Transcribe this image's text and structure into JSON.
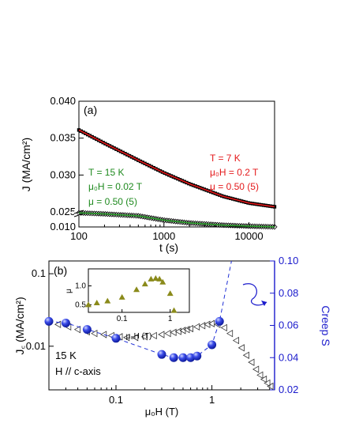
{
  "chart_data": [
    {
      "panel": "a",
      "type": "scatter",
      "panel_label": "(a)",
      "xlabel": "t (s)",
      "ylabel": "J (MA/cm²)",
      "xscale": "log",
      "xlim": [
        100,
        20000
      ],
      "ylim": [
        0.01,
        0.04
      ],
      "y_axis_break": true,
      "x_ticks": [
        {
          "value": 100,
          "label": "100"
        },
        {
          "value": 1000,
          "label": "1000"
        },
        {
          "value": 10000,
          "label": "10000"
        }
      ],
      "y_ticks": [
        {
          "value": 0.01,
          "label": "0.010"
        },
        {
          "value": 0.025,
          "label": "0.025"
        },
        {
          "value": 0.03,
          "label": "0.030"
        },
        {
          "value": 0.035,
          "label": "0.035"
        },
        {
          "value": 0.04,
          "label": "0.040"
        }
      ],
      "series": [
        {
          "marker": "square",
          "color": "#000000",
          "fit_color": "#e41a1c",
          "annotation": {
            "T": "T = 7 K",
            "H": "μ₀H = 0.2 T",
            "mu": "μ = 0.50 (5)"
          },
          "annotation_color": "#e41a1c",
          "x": [
            100,
            200,
            500,
            1000,
            2000,
            5000,
            10000,
            20000
          ],
          "y": [
            0.0361,
            0.0343,
            0.032,
            0.0303,
            0.0288,
            0.0271,
            0.0262,
            0.0257
          ]
        },
        {
          "marker": "diamond-open",
          "color": "#000000",
          "fit_color": "#2ca02c",
          "annotation": {
            "T": "T = 15 K",
            "H": "μ₀H = 0.02 T",
            "mu": "μ = 0.50 (5)"
          },
          "annotation_color": "#1f8a1f",
          "x": [
            100,
            200,
            500,
            1000,
            2000,
            5000,
            10000,
            20000
          ],
          "y": [
            0.0241,
            0.023,
            0.0211,
            0.0168,
            0.014,
            0.0118,
            0.0108,
            0.0101
          ]
        }
      ]
    },
    {
      "panel": "b",
      "type": "scatter",
      "panel_label": "(b)",
      "xlabel": "μ₀H (T)",
      "ylabel_left": "J꜀ (MA/cm²)",
      "ylabel_right": "Creep S",
      "right_axis_color": "#1a1acc",
      "xscale": "log",
      "xlim": [
        0.02,
        4.5
      ],
      "y_left_scale": "log",
      "y_left_lim": [
        0.0025,
        0.15
      ],
      "y_right_lim": [
        0.02,
        0.1
      ],
      "x_ticks": [
        {
          "value": 0.1,
          "label": "0.1"
        },
        {
          "value": 1,
          "label": "1"
        }
      ],
      "y_left_ticks": [
        {
          "value": 0.01,
          "label": "0.01"
        },
        {
          "value": 0.1,
          "label": "0.1"
        }
      ],
      "y_right_ticks": [
        {
          "value": 0.02,
          "label": "0.02"
        },
        {
          "value": 0.04,
          "label": "0.04"
        },
        {
          "value": 0.06,
          "label": "0.06"
        },
        {
          "value": 0.08,
          "label": "0.08"
        },
        {
          "value": 0.1,
          "label": "0.10"
        }
      ],
      "annotations": [
        "15 K",
        "H // c-axis"
      ],
      "jc_series": {
        "marker": "triangle-left-open",
        "color": "#333333",
        "x": [
          0.025,
          0.032,
          0.04,
          0.05,
          0.06,
          0.075,
          0.09,
          0.11,
          0.13,
          0.16,
          0.2,
          0.25,
          0.3,
          0.35,
          0.4,
          0.45,
          0.5,
          0.55,
          0.6,
          0.7,
          0.8,
          0.9,
          1.0,
          1.15,
          1.35,
          1.55,
          1.8,
          2.05,
          2.3,
          2.6,
          2.9,
          3.2,
          3.5,
          3.8,
          4.1
        ],
        "y": [
          0.02,
          0.0185,
          0.017,
          0.0158,
          0.015,
          0.0145,
          0.014,
          0.0135,
          0.0132,
          0.0132,
          0.0135,
          0.014,
          0.0145,
          0.015,
          0.0155,
          0.016,
          0.0165,
          0.017,
          0.0175,
          0.0185,
          0.0192,
          0.02,
          0.0205,
          0.02,
          0.018,
          0.015,
          0.012,
          0.0095,
          0.0075,
          0.006,
          0.0048,
          0.004,
          0.0035,
          0.0031,
          0.0028
        ]
      },
      "creep_series": {
        "marker": "sphere",
        "color": "#1f2fd6",
        "line": "dashed",
        "x": [
          0.02,
          0.03,
          0.05,
          0.1,
          0.3,
          0.4,
          0.5,
          0.6,
          0.7,
          1.0,
          1.2,
          1.6
        ],
        "y": [
          0.0625,
          0.0615,
          0.0575,
          0.052,
          0.042,
          0.04,
          0.04,
          0.04,
          0.041,
          0.048,
          0.0625,
          0.1
        ]
      },
      "inset": {
        "type": "scatter",
        "xlabel": "μ₀H (T)",
        "ylabel": "μ",
        "xscale": "log",
        "xlim": [
          0.02,
          2.5
        ],
        "ylim": [
          0.3,
          1.45
        ],
        "x_ticks": [
          {
            "value": 0.1,
            "label": "0.1"
          },
          {
            "value": 1,
            "label": "1"
          }
        ],
        "y_ticks": [
          {
            "value": 0.5,
            "label": "0.5"
          },
          {
            "value": 1.0,
            "label": "1.0"
          }
        ],
        "marker": "triangle-up",
        "color": "#8a8a1a",
        "x": [
          0.02,
          0.03,
          0.05,
          0.1,
          0.2,
          0.3,
          0.4,
          0.5,
          0.6,
          0.7,
          1.0,
          1.2
        ],
        "y": [
          0.5,
          0.55,
          0.6,
          0.7,
          0.9,
          1.05,
          1.18,
          1.2,
          1.18,
          1.1,
          0.8,
          0.35
        ]
      }
    }
  ]
}
